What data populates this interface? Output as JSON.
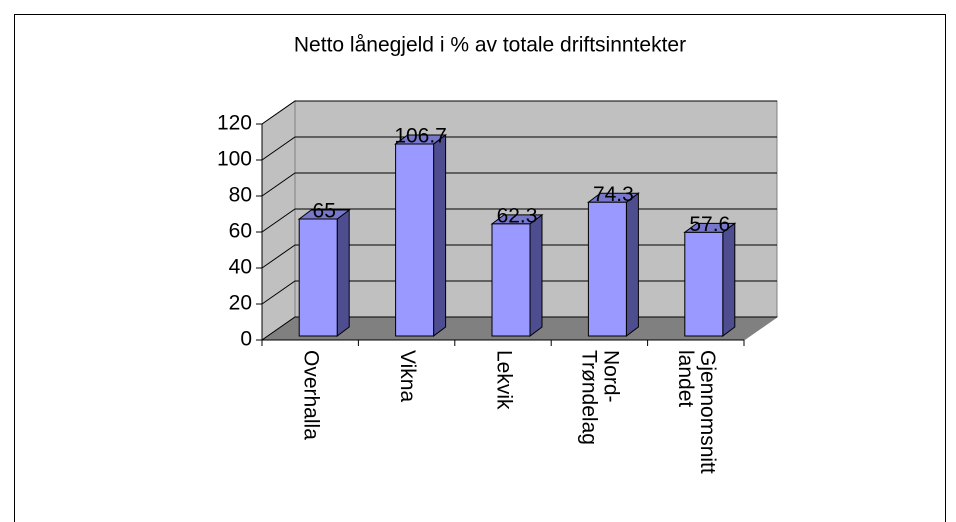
{
  "chart_data": {
    "type": "bar3d",
    "title": "Netto lånegjeld i % av totale driftsinntekter",
    "categories": [
      "Overhalla",
      "Vikna",
      "Lekvik",
      "Nord-Trøndelag",
      "Gjennomsnitt landet"
    ],
    "values": [
      65,
      106.7,
      62.3,
      74.3,
      57.6
    ],
    "color": "#9999ff",
    "ylim": [
      0,
      120
    ],
    "yticks": [
      0,
      20,
      40,
      60,
      80,
      100,
      120
    ],
    "grid": true
  }
}
